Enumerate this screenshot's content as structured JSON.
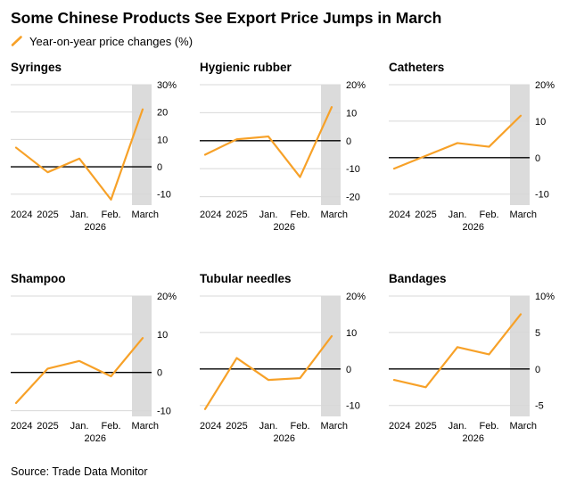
{
  "header": {
    "title": "Some Chinese Products See Export Price Jumps in March",
    "legend_label": "Year-on-year price changes (%)"
  },
  "source": "Source: Trade Data Monitor",
  "colors": {
    "line": "#F7A128",
    "band": "#DBDBDB",
    "grid": "#D8D8D8",
    "zero": "#000000",
    "text": "#000000"
  },
  "chart_data": [
    {
      "type": "line",
      "title": "Syringes",
      "categories": [
        "2024",
        "2025",
        "Jan.",
        "Feb.",
        "March"
      ],
      "year_sub_label": "2026",
      "values": [
        7,
        -2,
        3,
        -12,
        21
      ],
      "ticks": [
        30,
        20,
        10,
        0,
        -10
      ],
      "ylim": [
        -14,
        30
      ],
      "unit": "%",
      "highlight": "March"
    },
    {
      "type": "line",
      "title": "Hygienic rubber",
      "categories": [
        "2024",
        "2025",
        "Jan.",
        "Feb.",
        "March"
      ],
      "year_sub_label": "2026",
      "values": [
        -5,
        0.5,
        1.5,
        -13,
        12
      ],
      "ticks": [
        20,
        10,
        0,
        -10,
        -20
      ],
      "ylim": [
        -23,
        20
      ],
      "unit": "%",
      "highlight": "March"
    },
    {
      "type": "line",
      "title": "Catheters",
      "categories": [
        "2024",
        "2025",
        "Jan.",
        "Feb.",
        "March"
      ],
      "year_sub_label": "2026",
      "values": [
        -3,
        0.5,
        4,
        3,
        11.5
      ],
      "ticks": [
        20,
        10,
        0,
        -10
      ],
      "ylim": [
        -13,
        20
      ],
      "unit": "%",
      "highlight": "March"
    },
    {
      "type": "line",
      "title": "Shampoo",
      "categories": [
        "2024",
        "2025",
        "Jan.",
        "Feb.",
        "March"
      ],
      "year_sub_label": "2026",
      "values": [
        -8,
        1,
        3,
        -1,
        9
      ],
      "ticks": [
        20,
        10,
        0,
        -10
      ],
      "ylim": [
        -11.5,
        20
      ],
      "unit": "%",
      "highlight": "March"
    },
    {
      "type": "line",
      "title": "Tubular needles",
      "categories": [
        "2024",
        "2025",
        "Jan.",
        "Feb.",
        "March"
      ],
      "year_sub_label": "2026",
      "values": [
        -11,
        3,
        -3,
        -2.5,
        9
      ],
      "ticks": [
        20,
        10,
        0,
        -10
      ],
      "ylim": [
        -13,
        20
      ],
      "unit": "%",
      "highlight": "March"
    },
    {
      "type": "line",
      "title": "Bandages",
      "categories": [
        "2024",
        "2025",
        "Jan.",
        "Feb.",
        "March"
      ],
      "year_sub_label": "2026",
      "values": [
        -1.5,
        -2.5,
        3,
        2,
        7.5
      ],
      "ticks": [
        10,
        5,
        0,
        -5
      ],
      "ylim": [
        -6.5,
        10
      ],
      "unit": "%",
      "highlight": "March"
    }
  ]
}
